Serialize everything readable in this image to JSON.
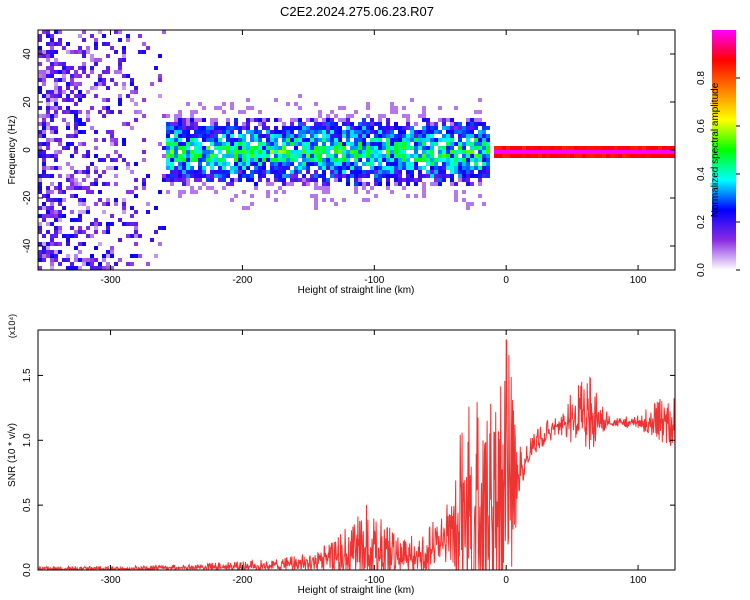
{
  "title": "C2E2.2024.275.06.23.R07",
  "chart_data": [
    {
      "type": "heatmap",
      "xlabel": "Height of straight line (km)",
      "ylabel": "Frequency (Hz)",
      "xlim": [
        -355,
        128
      ],
      "ylim": [
        -50,
        50
      ],
      "xticks": [
        -300,
        -200,
        -100,
        0,
        100
      ],
      "yticks": [
        -40,
        -20,
        0,
        20,
        40
      ],
      "colorbar": {
        "label": "Normalized spectral amplitude",
        "range": [
          0.0,
          1.0
        ],
        "ticks": [
          "0.0",
          "0.2",
          "0.4",
          "0.6",
          "0.8"
        ],
        "colormap": [
          "#ffffff",
          "#8a2be2",
          "#0000ff",
          "#00ffff",
          "#00ff00",
          "#ffff00",
          "#ff8000",
          "#ff0000",
          "#ff00ff"
        ]
      },
      "grid": false,
      "regions": [
        {
          "x": [
            -355,
            -260
          ],
          "freq_range": [
            -50,
            50
          ],
          "amplitude": [
            0.05,
            0.25
          ],
          "pattern": "scattered"
        },
        {
          "x": [
            -260,
            -15
          ],
          "freq_center": 0,
          "freq_halfwidth": [
            10,
            15
          ],
          "amplitude": [
            0.2,
            0.45
          ],
          "pattern": "band"
        },
        {
          "x": [
            -10,
            128
          ],
          "freq_center": 0,
          "freq_halfwidth": [
            2,
            3
          ],
          "amplitude": [
            0.8,
            1.0
          ],
          "pattern": "narrow line"
        }
      ]
    },
    {
      "type": "line",
      "xlabel": "Height of straight line (km)",
      "ylabel": "SNR (10 * v/v)",
      "y_multiplier": "(x10⁴)",
      "xlim": [
        -355,
        128
      ],
      "ylim": [
        0.0,
        1.85
      ],
      "xticks": [
        -300,
        -200,
        -100,
        0,
        100
      ],
      "yticks": [
        "0.0",
        "0.5",
        "1.0",
        "1.5"
      ],
      "color": "#ee3333",
      "grid": false,
      "series": [
        {
          "x": [
            -355,
            -300,
            -250,
            -200,
            -170,
            -150,
            -130,
            -110,
            -95,
            -80,
            -60,
            -40,
            -30,
            -20,
            -10,
            -5,
            0,
            10,
            20,
            30,
            40,
            55,
            65,
            72,
            80,
            100,
            128
          ],
          "y_mean": [
            0.01,
            0.01,
            0.02,
            0.03,
            0.04,
            0.06,
            0.08,
            0.12,
            0.15,
            0.1,
            0.12,
            0.3,
            0.4,
            0.45,
            0.48,
            0.55,
            0.6,
            0.75,
            0.95,
            1.05,
            1.12,
            1.17,
            1.18,
            1.16,
            1.14,
            1.14,
            1.12
          ],
          "y_peak": [
            0.03,
            0.03,
            0.04,
            0.07,
            0.09,
            0.14,
            0.22,
            0.55,
            0.4,
            0.25,
            0.3,
            0.65,
            1.45,
            1.5,
            1.55,
            1.62,
            1.85,
            0.95,
            1.05,
            1.15,
            1.22,
            1.45,
            1.5,
            1.3,
            1.18,
            1.2,
            1.4
          ]
        }
      ]
    }
  ]
}
